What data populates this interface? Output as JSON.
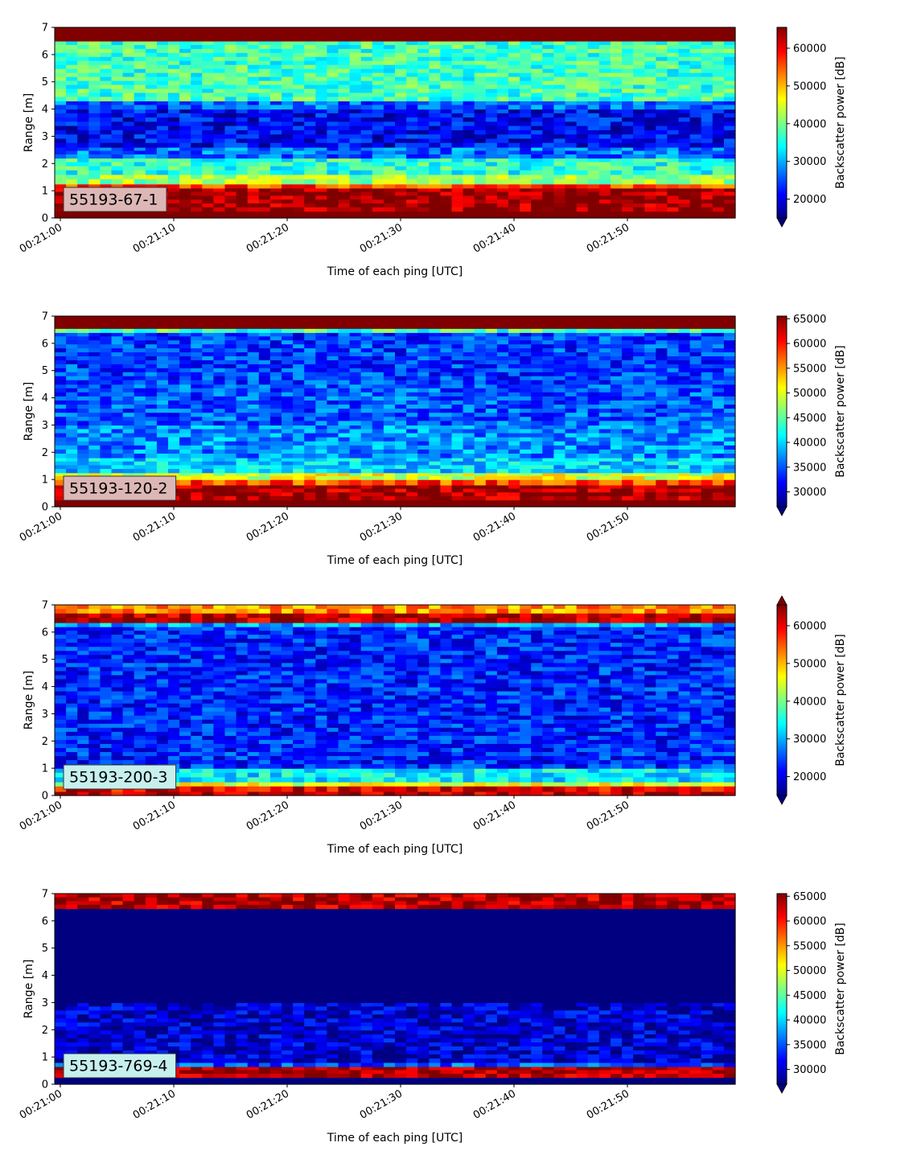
{
  "chart_data": [
    {
      "type": "heatmap",
      "label_box": "55193-67-1",
      "xlabel": "Time of each ping [UTC]",
      "ylabel": "Range [m]",
      "x_ticks": [
        "00:21:00",
        "00:21:10",
        "00:21:20",
        "00:21:30",
        "00:21:40",
        "00:21:50"
      ],
      "x_range": [
        "00:20:59.5",
        "00:21:59.5"
      ],
      "y_ticks": [
        0,
        1,
        2,
        3,
        4,
        5,
        6,
        7
      ],
      "ylim": [
        0,
        7
      ],
      "colorbar": {
        "label": "Backscatter power [dB]",
        "range": [
          15000,
          65535
        ],
        "ticks": [
          20000,
          30000,
          40000,
          50000,
          60000
        ],
        "extend": "min",
        "colormap": "jet"
      },
      "profile": [
        {
          "range": [
            0.0,
            0.25
          ],
          "value": 65535
        },
        {
          "range": [
            0.25,
            1.1
          ],
          "value": 64000
        },
        {
          "range": [
            1.1,
            1.25
          ],
          "value": 56000
        },
        {
          "range": [
            1.25,
            1.6
          ],
          "value": 42000
        },
        {
          "range": [
            1.6,
            2.2
          ],
          "value": 36000
        },
        {
          "range": [
            2.2,
            2.6
          ],
          "value": 27000
        },
        {
          "range": [
            2.6,
            4.0
          ],
          "value": 21000
        },
        {
          "range": [
            4.0,
            4.3
          ],
          "value": 26000
        },
        {
          "range": [
            4.3,
            6.5
          ],
          "value": 37000
        },
        {
          "range": [
            6.5,
            7.0
          ],
          "value": 65535
        }
      ]
    },
    {
      "type": "heatmap",
      "label_box": "55193-120-2",
      "xlabel": "Time of each ping [UTC]",
      "ylabel": "Range [m]",
      "x_ticks": [
        "00:21:00",
        "00:21:10",
        "00:21:20",
        "00:21:30",
        "00:21:40",
        "00:21:50"
      ],
      "x_range": [
        "00:20:59.5",
        "00:21:59.5"
      ],
      "y_ticks": [
        0,
        1,
        2,
        3,
        4,
        5,
        6,
        7
      ],
      "ylim": [
        0,
        7
      ],
      "colorbar": {
        "label": "Backscatter power [dB]",
        "range": [
          27000,
          65535
        ],
        "ticks": [
          30000,
          35000,
          40000,
          45000,
          50000,
          55000,
          60000,
          65000
        ],
        "extend": "min",
        "colormap": "jet"
      },
      "profile": [
        {
          "range": [
            0.0,
            0.25
          ],
          "value": 65535
        },
        {
          "range": [
            0.25,
            0.8
          ],
          "value": 64000
        },
        {
          "range": [
            0.8,
            1.0
          ],
          "value": 58000
        },
        {
          "range": [
            1.0,
            1.25
          ],
          "value": 50000
        },
        {
          "range": [
            1.25,
            1.8
          ],
          "value": 40000
        },
        {
          "range": [
            1.8,
            3.0
          ],
          "value": 37000
        },
        {
          "range": [
            3.0,
            4.5
          ],
          "value": 35000
        },
        {
          "range": [
            4.5,
            6.4
          ],
          "value": 34000
        },
        {
          "range": [
            6.4,
            6.55
          ],
          "value": 44000
        },
        {
          "range": [
            6.55,
            7.0
          ],
          "value": 65535
        }
      ]
    },
    {
      "type": "heatmap",
      "label_box": "55193-200-3",
      "xlabel": "Time of each ping [UTC]",
      "ylabel": "Range [m]",
      "x_ticks": [
        "00:21:00",
        "00:21:10",
        "00:21:20",
        "00:21:30",
        "00:21:40",
        "00:21:50"
      ],
      "x_range": [
        "00:20:59.5",
        "00:21:59.5"
      ],
      "y_ticks": [
        0,
        1,
        2,
        3,
        4,
        5,
        6,
        7
      ],
      "ylim": [
        0,
        7
      ],
      "colorbar": {
        "label": "Backscatter power [dB]",
        "range": [
          15000,
          65535
        ],
        "ticks": [
          20000,
          30000,
          40000,
          50000,
          60000
        ],
        "extend": "both",
        "colormap": "jet"
      },
      "profile": [
        {
          "range": [
            0.0,
            0.15
          ],
          "value": 62000
        },
        {
          "range": [
            0.15,
            0.35
          ],
          "value": 60000
        },
        {
          "range": [
            0.35,
            0.5
          ],
          "value": 45000
        },
        {
          "range": [
            0.5,
            1.0
          ],
          "value": 33000
        },
        {
          "range": [
            1.0,
            6.2
          ],
          "value": 23000
        },
        {
          "range": [
            6.2,
            6.35
          ],
          "value": 30000
        },
        {
          "range": [
            6.35,
            6.7
          ],
          "value": 63000
        },
        {
          "range": [
            6.7,
            7.0
          ],
          "value": 52000
        }
      ]
    },
    {
      "type": "heatmap",
      "label_box": "55193-769-4",
      "xlabel": "Time of each ping [UTC]",
      "ylabel": "Range [m]",
      "x_ticks": [
        "00:21:00",
        "00:21:10",
        "00:21:20",
        "00:21:30",
        "00:21:40",
        "00:21:50"
      ],
      "x_range": [
        "00:20:59.5",
        "00:21:59.5"
      ],
      "y_ticks": [
        0,
        1,
        2,
        3,
        4,
        5,
        6,
        7
      ],
      "ylim": [
        0,
        7
      ],
      "colorbar": {
        "label": "Backscatter power [dB]",
        "range": [
          27000,
          65535
        ],
        "ticks": [
          30000,
          35000,
          40000,
          45000,
          50000,
          55000,
          60000,
          65000
        ],
        "extend": "min",
        "colormap": "jet"
      },
      "profile": [
        {
          "range": [
            0.0,
            0.25
          ],
          "value": 27000
        },
        {
          "range": [
            0.25,
            0.65
          ],
          "value": 64000
        },
        {
          "range": [
            0.65,
            0.8
          ],
          "value": 35000
        },
        {
          "range": [
            0.8,
            3.0
          ],
          "value": 30000
        },
        {
          "range": [
            3.0,
            6.45
          ],
          "value": 27000
        },
        {
          "range": [
            6.45,
            7.0
          ],
          "value": 63500
        }
      ]
    }
  ]
}
